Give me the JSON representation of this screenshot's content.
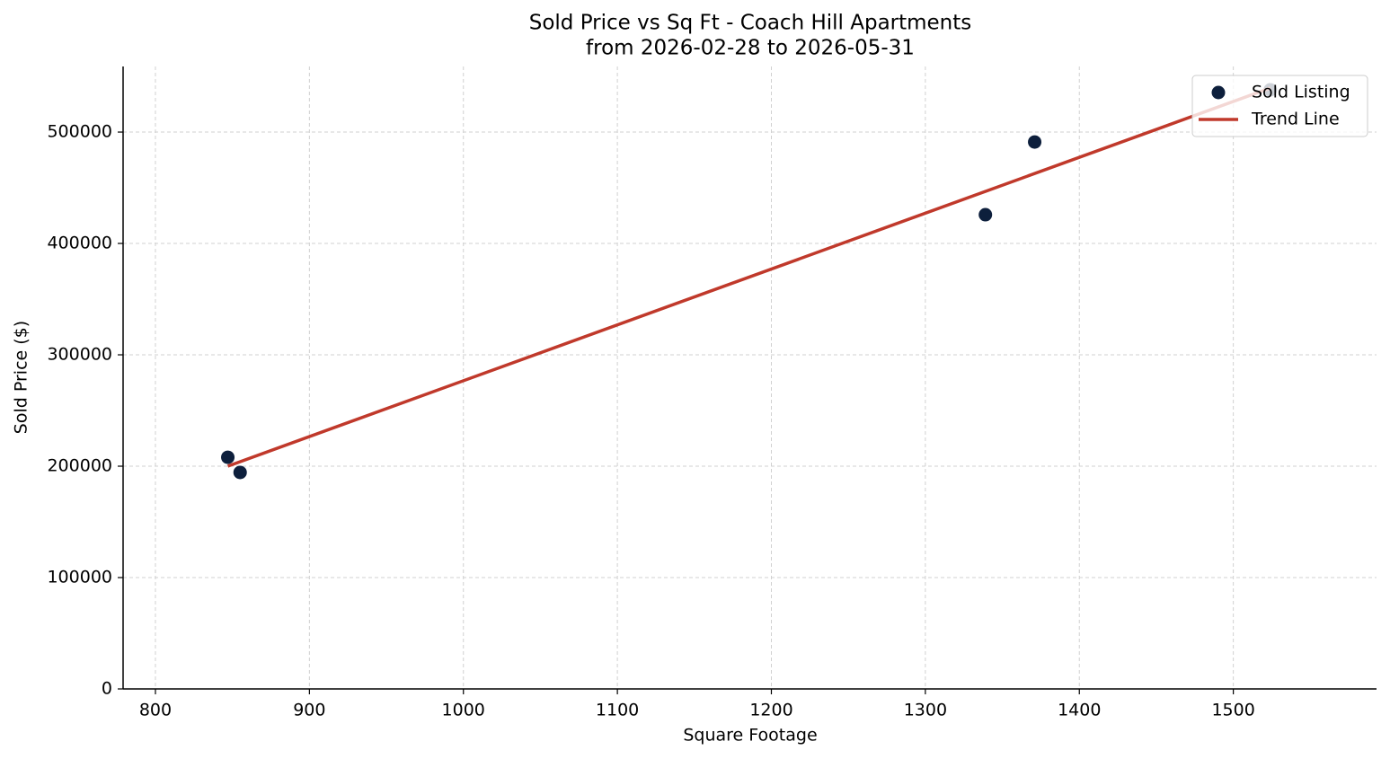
{
  "chart_data": {
    "type": "scatter",
    "title": "Sold Price vs Sq Ft - Coach Hill Apartments",
    "subtitle": "from 2026-02-28 to 2026-05-31",
    "x_label": "Square Footage",
    "y_label": "Sold Price ($)",
    "xlim": [
      779,
      1593
    ],
    "ylim": [
      0,
      558900
    ],
    "xticks": [
      800,
      900,
      1000,
      1100,
      1200,
      1300,
      1400,
      1500
    ],
    "yticks": [
      0,
      100000,
      200000,
      300000,
      400000,
      500000
    ],
    "grid": true,
    "legend": "upper right",
    "series": [
      {
        "name": "Sold Listing",
        "type": "scatter",
        "color": "#0d1f3c",
        "x": [
          847,
          855,
          1339,
          1371,
          1524
        ],
        "values": [
          208000,
          194400,
          425800,
          491100,
          537900
        ]
      },
      {
        "name": "Trend Line",
        "type": "line",
        "color": "#c0392b",
        "x": [
          847,
          1524
        ],
        "values": [
          200000,
          539500
        ]
      }
    ]
  }
}
